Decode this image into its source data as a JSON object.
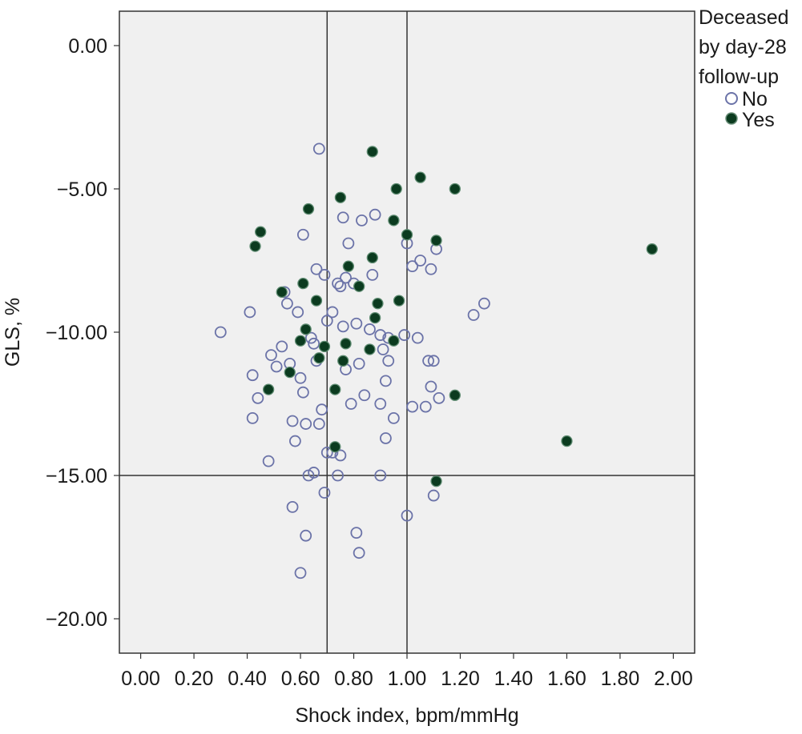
{
  "chart_data": {
    "type": "scatter",
    "xlabel": "Shock index, bpm/mmHg",
    "ylabel": "GLS, %",
    "xlim": [
      -0.08,
      2.08
    ],
    "ylim": [
      -21.2,
      1.2
    ],
    "x_ticks": [
      0.0,
      0.2,
      0.4,
      0.6,
      0.8,
      1.0,
      1.2,
      1.4,
      1.6,
      1.8,
      2.0
    ],
    "x_tick_labels": [
      "0.00",
      "0.20",
      "0.40",
      "0.60",
      "0.80",
      "1.00",
      "1.20",
      "1.40",
      "1.60",
      "1.80",
      "2.00"
    ],
    "y_ticks": [
      0,
      -5,
      -10,
      -15,
      -20
    ],
    "y_tick_labels": [
      "0.00",
      "−5.00",
      "−10.00",
      "−15.00",
      "−20.00"
    ],
    "reference_lines": {
      "vertical": [
        0.7,
        1.0
      ],
      "horizontal": [
        -15.0
      ]
    },
    "plot_background": "#f0f0f0",
    "grid": false,
    "legend": {
      "title_lines": [
        "Deceased",
        "by day-28",
        "follow-up"
      ],
      "placement": "top-right outside",
      "entries": [
        {
          "label": "No",
          "marker": "open-circle"
        },
        {
          "label": "Yes",
          "marker": "filled-circle"
        }
      ]
    },
    "series": [
      {
        "name": "No",
        "marker": "open-circle",
        "color": "#6b73a8",
        "points": [
          [
            0.67,
            -3.6
          ],
          [
            0.3,
            -10.0
          ],
          [
            0.41,
            -9.3
          ],
          [
            0.42,
            -11.5
          ],
          [
            0.42,
            -13.0
          ],
          [
            0.44,
            -12.3
          ],
          [
            0.48,
            -14.5
          ],
          [
            0.49,
            -10.8
          ],
          [
            0.51,
            -11.2
          ],
          [
            0.53,
            -10.5
          ],
          [
            0.54,
            -8.6
          ],
          [
            0.55,
            -9.0
          ],
          [
            0.56,
            -11.1
          ],
          [
            0.57,
            -13.1
          ],
          [
            0.57,
            -16.1
          ],
          [
            0.58,
            -13.8
          ],
          [
            0.59,
            -9.3
          ],
          [
            0.6,
            -11.6
          ],
          [
            0.6,
            -18.4
          ],
          [
            0.61,
            -6.6
          ],
          [
            0.61,
            -12.1
          ],
          [
            0.62,
            -13.2
          ],
          [
            0.62,
            -17.1
          ],
          [
            0.63,
            -15.0
          ],
          [
            0.64,
            -10.2
          ],
          [
            0.65,
            -10.4
          ],
          [
            0.65,
            -14.9
          ],
          [
            0.66,
            -7.8
          ],
          [
            0.66,
            -11.0
          ],
          [
            0.67,
            -13.2
          ],
          [
            0.68,
            -12.7
          ],
          [
            0.69,
            -8.0
          ],
          [
            0.69,
            -15.6
          ],
          [
            0.7,
            -9.6
          ],
          [
            0.7,
            -14.2
          ],
          [
            0.72,
            -9.3
          ],
          [
            0.72,
            -14.2
          ],
          [
            0.74,
            -8.3
          ],
          [
            0.74,
            -15.0
          ],
          [
            0.75,
            -8.4
          ],
          [
            0.75,
            -14.3
          ],
          [
            0.76,
            -6.0
          ],
          [
            0.76,
            -9.8
          ],
          [
            0.77,
            -11.3
          ],
          [
            0.77,
            -8.1
          ],
          [
            0.78,
            -6.9
          ],
          [
            0.79,
            -12.5
          ],
          [
            0.8,
            -8.3
          ],
          [
            0.81,
            -9.7
          ],
          [
            0.81,
            -17.0
          ],
          [
            0.82,
            -11.1
          ],
          [
            0.82,
            -17.7
          ],
          [
            0.83,
            -6.1
          ],
          [
            0.84,
            -12.2
          ],
          [
            0.86,
            -9.9
          ],
          [
            0.87,
            -8.0
          ],
          [
            0.88,
            -5.9
          ],
          [
            0.9,
            -10.1
          ],
          [
            0.9,
            -12.5
          ],
          [
            0.9,
            -15.0
          ],
          [
            0.91,
            -10.6
          ],
          [
            0.92,
            -11.7
          ],
          [
            0.92,
            -13.7
          ],
          [
            0.93,
            -10.2
          ],
          [
            0.93,
            -11.0
          ],
          [
            0.95,
            -13.0
          ],
          [
            0.99,
            -10.1
          ],
          [
            1.0,
            -6.9
          ],
          [
            1.0,
            -16.4
          ],
          [
            1.02,
            -7.7
          ],
          [
            1.02,
            -12.6
          ],
          [
            1.04,
            -10.2
          ],
          [
            1.05,
            -7.5
          ],
          [
            1.07,
            -12.6
          ],
          [
            1.08,
            -11.0
          ],
          [
            1.09,
            -7.8
          ],
          [
            1.09,
            -11.9
          ],
          [
            1.1,
            -11.0
          ],
          [
            1.1,
            -15.7
          ],
          [
            1.11,
            -7.1
          ],
          [
            1.12,
            -12.3
          ],
          [
            1.25,
            -9.4
          ],
          [
            1.29,
            -9.0
          ]
        ]
      },
      {
        "name": "Yes",
        "marker": "filled-circle",
        "color": "#0b3b1f",
        "points": [
          [
            0.87,
            -3.7
          ],
          [
            0.43,
            -7.0
          ],
          [
            0.45,
            -6.5
          ],
          [
            0.48,
            -12.0
          ],
          [
            0.53,
            -8.6
          ],
          [
            0.56,
            -11.4
          ],
          [
            0.6,
            -10.3
          ],
          [
            0.61,
            -8.3
          ],
          [
            0.62,
            -9.9
          ],
          [
            0.63,
            -5.7
          ],
          [
            0.66,
            -8.9
          ],
          [
            0.67,
            -10.9
          ],
          [
            0.69,
            -10.5
          ],
          [
            0.73,
            -14.0
          ],
          [
            0.73,
            -12.0
          ],
          [
            0.75,
            -5.3
          ],
          [
            0.76,
            -11.0
          ],
          [
            0.77,
            -10.4
          ],
          [
            0.78,
            -7.7
          ],
          [
            0.82,
            -8.4
          ],
          [
            0.86,
            -10.6
          ],
          [
            0.87,
            -7.4
          ],
          [
            0.88,
            -9.5
          ],
          [
            0.89,
            -9.0
          ],
          [
            0.95,
            -6.1
          ],
          [
            0.95,
            -10.3
          ],
          [
            0.96,
            -5.0
          ],
          [
            0.97,
            -8.9
          ],
          [
            1.0,
            -6.6
          ],
          [
            1.05,
            -4.6
          ],
          [
            1.11,
            -6.8
          ],
          [
            1.18,
            -5.0
          ],
          [
            1.18,
            -12.2
          ],
          [
            1.11,
            -15.2
          ],
          [
            1.6,
            -13.8
          ],
          [
            1.92,
            -7.1
          ]
        ]
      }
    ]
  }
}
